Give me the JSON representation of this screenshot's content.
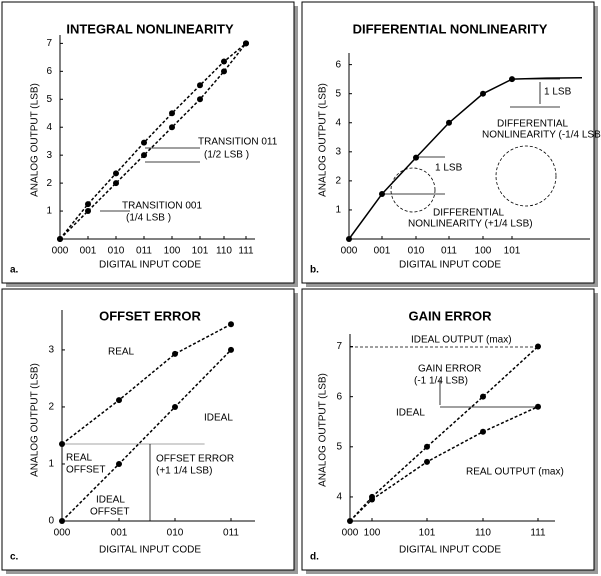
{
  "chart_data": [
    {
      "type": "line",
      "panel": "a.",
      "title": "INTEGRAL NONLINEARITY",
      "x_label": "DIGITAL INPUT CODE",
      "y_label": "ANALOG OUTPUT (LSB)",
      "categories": [
        "000",
        "001",
        "010",
        "011",
        "100",
        "101",
        "110",
        "111"
      ],
      "series": [
        {
          "color": "#000000",
          "values": [
            0,
            1.25,
            2.35,
            3.45,
            4.5,
            5.5,
            6.35,
            7
          ]
        },
        {
          "color": "#000000",
          "values": [
            0,
            1,
            2,
            3,
            4,
            5,
            6,
            7
          ]
        }
      ],
      "line_style": "dashed",
      "ylim": [
        0,
        7.3
      ],
      "yticks": [
        1,
        2,
        3,
        4,
        5,
        6,
        7
      ],
      "annotations": [
        "TRANSITION 011",
        "(1/2 LSB )",
        "TRANSITION 001",
        "(1/4 LSB )"
      ]
    },
    {
      "type": "line",
      "panel": "b.",
      "title": "DIFFERENTIAL NONLINEARITY",
      "x_label": "DIGITAL INPUT CODE",
      "y_label": "ANALOG OUTPUT (LSB)",
      "categories": [
        "000",
        "001",
        "010",
        "011",
        "100",
        "101"
      ],
      "series": [
        {
          "color": "#000000",
          "values": [
            0,
            1.55,
            2.8,
            4,
            5,
            5.5
          ]
        }
      ],
      "line_style": "solid",
      "ylim": [
        0,
        6.4
      ],
      "yticks": [
        1,
        2,
        3,
        4,
        5,
        6
      ],
      "annotations": [
        "1 LSB",
        "DIFFERENTIAL",
        "NONLINEARITY (-1/4 LSB)",
        "1 LSB",
        "DIFFERENTIAL",
        "NONLINEARITY (+1/4 LSB)"
      ]
    },
    {
      "type": "line",
      "panel": "c.",
      "title": "OFFSET ERROR",
      "x_label": "DIGITAL INPUT CODE",
      "y_label": "ANALOG OUTPUT (LSB)",
      "categories": [
        "000",
        "001",
        "010",
        "011"
      ],
      "series": [
        {
          "color": "#000000",
          "values": [
            1.35,
            2.12,
            2.93,
            3.45
          ]
        },
        {
          "color": "#000000",
          "values": [
            0,
            1,
            2,
            3
          ]
        }
      ],
      "line_style": "dashed",
      "ylim": [
        0,
        3.7
      ],
      "yticks": [
        0,
        1,
        2,
        3
      ],
      "annotations": [
        "REAL",
        "IDEAL",
        "REAL",
        "OFFSET",
        "OFFSET ERROR",
        "(+1 1/4 LSB)",
        "IDEAL",
        "OFFSET"
      ]
    },
    {
      "type": "line",
      "panel": "d.",
      "title": "GAIN ERROR",
      "x_label": "DIGITAL INPUT CODE",
      "y_label": "ANALOG OUTPUT (LSB)",
      "categories": [
        "000",
        "100",
        "101",
        "110",
        "111"
      ],
      "series": [
        {
          "color": "#000000",
          "values": [
            null,
            4,
            5,
            6,
            7
          ]
        },
        {
          "color": "#000000",
          "values": [
            null,
            3.95,
            4.7,
            5.3,
            5.8
          ]
        }
      ],
      "line_style": "dashed",
      "ylim": [
        3.52,
        7.25
      ],
      "yticks": [
        4,
        5,
        6,
        7
      ],
      "annotations": [
        "IDEAL OUTPUT (max)",
        "GAIN ERROR",
        "(-1 1/4 LSB)",
        "IDEAL",
        "REAL OUTPUT (max)"
      ]
    }
  ]
}
